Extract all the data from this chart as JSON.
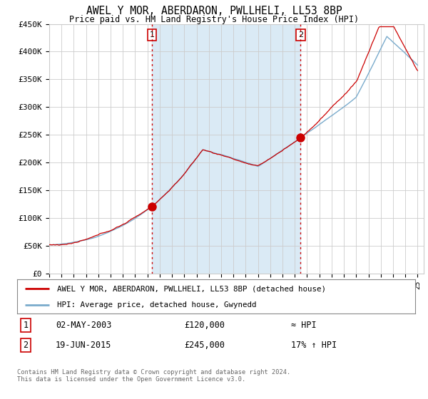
{
  "title": "AWEL Y MOR, ABERDARON, PWLLHELI, LL53 8BP",
  "subtitle": "Price paid vs. HM Land Registry's House Price Index (HPI)",
  "ylim": [
    0,
    450000
  ],
  "yticks": [
    0,
    50000,
    100000,
    150000,
    200000,
    250000,
    300000,
    350000,
    400000,
    450000
  ],
  "ytick_labels": [
    "£0",
    "£50K",
    "£100K",
    "£150K",
    "£200K",
    "£250K",
    "£300K",
    "£350K",
    "£400K",
    "£450K"
  ],
  "sale1_year": 2003.37,
  "sale1_price": 120000,
  "sale2_year": 2015.47,
  "sale2_price": 245000,
  "legend_line1": "AWEL Y MOR, ABERDARON, PWLLHELI, LL53 8BP (detached house)",
  "legend_line2": "HPI: Average price, detached house, Gwynedd",
  "table_row1": [
    "1",
    "02-MAY-2003",
    "£120,000",
    "≈ HPI"
  ],
  "table_row2": [
    "2",
    "19-JUN-2015",
    "£245,000",
    "17% ↑ HPI"
  ],
  "footer": "Contains HM Land Registry data © Crown copyright and database right 2024.\nThis data is licensed under the Open Government Licence v3.0.",
  "line_color_red": "#cc0000",
  "line_color_blue": "#7aabcc",
  "fill_color": "#daeaf5",
  "background_color": "#ffffff",
  "grid_color": "#cccccc"
}
